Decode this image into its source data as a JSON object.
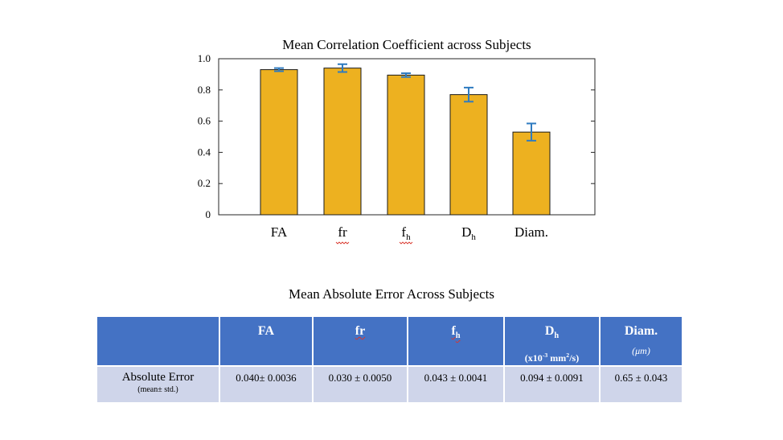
{
  "chart_data": {
    "type": "bar",
    "title": "Mean Correlation Coefficient across Subjects",
    "categories": [
      {
        "base": "FA",
        "sub": ""
      },
      {
        "base": "fr",
        "sub": ""
      },
      {
        "base": "f",
        "sub": "h"
      },
      {
        "base": "D",
        "sub": "h"
      },
      {
        "base": "Diam.",
        "sub": ""
      }
    ],
    "values": [
      0.93,
      0.94,
      0.895,
      0.77,
      0.53
    ],
    "error": [
      0.01,
      0.025,
      0.012,
      0.045,
      0.055
    ],
    "yticks": [
      "0",
      "0.2",
      "0.4",
      "0.6",
      "0.8",
      "1.0"
    ],
    "ylim": [
      0,
      1
    ],
    "grid": false,
    "bar_color": "#EDB120",
    "error_color": "#2F7BC0"
  },
  "table": {
    "title": "Mean Absolute Error Across Subjects",
    "header_color": "#4472C4",
    "row_color": "#CFD5EA",
    "columns": [
      {
        "base": "FA",
        "sub": ""
      },
      {
        "base": "fr",
        "sub": ""
      },
      {
        "base": "f",
        "sub": "h"
      },
      {
        "base": "D",
        "sub": "h",
        "unit_pre": "(x10",
        "unit_sup": "-3",
        "unit_mid": " mm",
        "unit_sup2": "2",
        "unit_post": "/s)"
      },
      {
        "base": "Diam.",
        "sub": "",
        "unit_italic": "(μm)"
      }
    ],
    "row_label": "Absolute Error",
    "row_sublabel": "(mean± std.)",
    "values": [
      "0.040± 0.0036",
      "0.030 ± 0.0050",
      "0.043 ± 0.0041",
      "0.094 ± 0.0091",
      "0.65 ± 0.043"
    ]
  }
}
